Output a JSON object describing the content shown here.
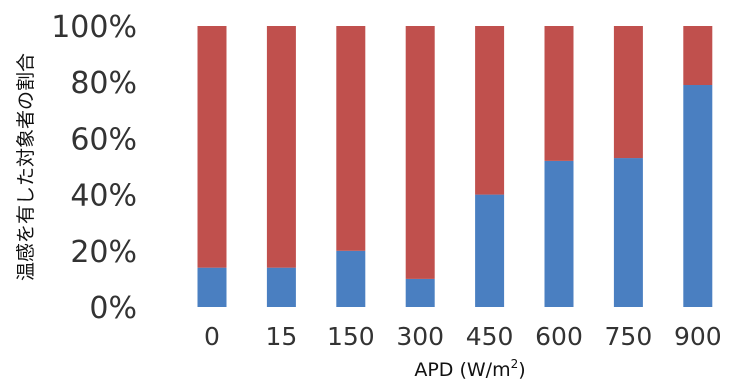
{
  "chart_data": {
    "type": "bar",
    "stacked": true,
    "percent": true,
    "categories": [
      "0",
      "15",
      "150",
      "300",
      "450",
      "600",
      "750",
      "900"
    ],
    "series": [
      {
        "values": [
          14,
          14,
          20,
          10,
          40,
          52,
          53,
          79
        ],
        "color": "#4a7fc1"
      },
      {
        "values": [
          86,
          86,
          80,
          90,
          60,
          48,
          47,
          21
        ],
        "color": "#c0504d"
      }
    ],
    "ylim": [
      0,
      100
    ],
    "yticks": [
      "0%",
      "20%",
      "40%",
      "60%",
      "80%",
      "100%"
    ],
    "xlabel_prefix": "APD (W/m",
    "xlabel_sup": "2",
    "xlabel_suffix": ")",
    "ylabel": "温感を有した対象者の割合",
    "grid": false,
    "legend": "none"
  }
}
